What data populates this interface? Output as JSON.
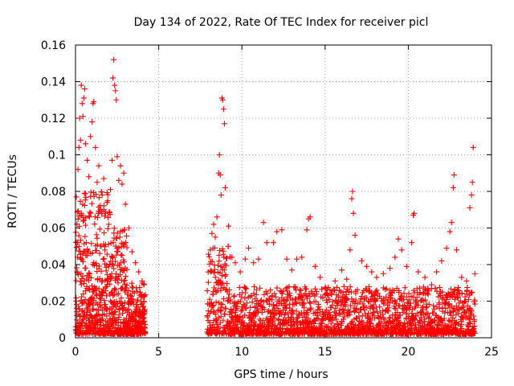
{
  "chart_data": {
    "type": "scatter",
    "title": "Day 134 of 2022, Rate Of TEC Index for receiver picl",
    "xlabel": "GPS time / hours",
    "ylabel": "ROTI / TECUs",
    "xlim": [
      0,
      25
    ],
    "ylim": [
      0,
      0.16
    ],
    "xticks": [
      0,
      5,
      10,
      15,
      20,
      25
    ],
    "xtick_labels": [
      "0",
      "5",
      "10",
      "15",
      "20",
      "25"
    ],
    "yticks": [
      0,
      0.02,
      0.04,
      0.06,
      0.08,
      0.1,
      0.12,
      0.14,
      0.16
    ],
    "ytick_labels": [
      "0",
      "0.02",
      "0.04",
      "0.06",
      "0.08",
      "0.1",
      "0.12",
      "0.14",
      "0.16"
    ],
    "grid": true,
    "legend": "none",
    "marker": "plus",
    "marker_color": "#ff0000",
    "data_gap_hours": [
      4.2,
      7.9
    ],
    "series": [
      {
        "points": [
          [
            0.05,
            0.077
          ],
          [
            0.1,
            0.052
          ],
          [
            0.15,
            0.092
          ],
          [
            0.2,
            0.104
          ],
          [
            0.25,
            0.12
          ],
          [
            0.3,
            0.108
          ],
          [
            0.35,
            0.138
          ],
          [
            0.4,
            0.128
          ],
          [
            0.45,
            0.121
          ],
          [
            0.5,
            0.131
          ],
          [
            0.55,
            0.136
          ],
          [
            0.6,
            0.106
          ],
          [
            0.7,
            0.097
          ],
          [
            0.8,
            0.088
          ],
          [
            0.9,
            0.11
          ],
          [
            1.0,
            0.118
          ],
          [
            1.05,
            0.128
          ],
          [
            1.1,
            0.129
          ],
          [
            1.2,
            0.104
          ],
          [
            1.3,
            0.085
          ],
          [
            1.4,
            0.094
          ],
          [
            1.5,
            0.07
          ],
          [
            1.6,
            0.078
          ],
          [
            1.7,
            0.087
          ],
          [
            1.8,
            0.068
          ],
          [
            1.9,
            0.074
          ],
          [
            2.0,
            0.062
          ],
          [
            2.1,
            0.081
          ],
          [
            2.2,
            0.097
          ],
          [
            2.25,
            0.142
          ],
          [
            2.3,
            0.152
          ],
          [
            2.35,
            0.138
          ],
          [
            2.4,
            0.135
          ],
          [
            2.45,
            0.13
          ],
          [
            2.5,
            0.099
          ],
          [
            2.6,
            0.086
          ],
          [
            2.7,
            0.094
          ],
          [
            2.8,
            0.084
          ],
          [
            2.9,
            0.09
          ],
          [
            3.0,
            0.073
          ],
          [
            3.2,
            0.06
          ],
          [
            3.4,
            0.047
          ],
          [
            3.6,
            0.041
          ],
          [
            3.8,
            0.036
          ],
          [
            4.0,
            0.031
          ],
          [
            4.1,
            0.029
          ],
          [
            8.1,
            0.048
          ],
          [
            8.2,
            0.057
          ],
          [
            8.3,
            0.062
          ],
          [
            8.4,
            0.055
          ],
          [
            8.5,
            0.066
          ],
          [
            8.6,
            0.09
          ],
          [
            8.65,
            0.1
          ],
          [
            8.7,
            0.089
          ],
          [
            8.75,
            0.078
          ],
          [
            8.8,
            0.131
          ],
          [
            8.85,
            0.13
          ],
          [
            8.9,
            0.125
          ],
          [
            8.95,
            0.117
          ],
          [
            9.0,
            0.082
          ],
          [
            9.2,
            0.061
          ],
          [
            9.4,
            0.044
          ],
          [
            9.6,
            0.041
          ],
          [
            9.9,
            0.036
          ],
          [
            10.2,
            0.043
          ],
          [
            10.4,
            0.049
          ],
          [
            10.7,
            0.041
          ],
          [
            11.0,
            0.043
          ],
          [
            11.3,
            0.063
          ],
          [
            11.5,
            0.052
          ],
          [
            11.9,
            0.052
          ],
          [
            12.1,
            0.058
          ],
          [
            12.4,
            0.059
          ],
          [
            12.7,
            0.043
          ],
          [
            13.0,
            0.037
          ],
          [
            13.3,
            0.043
          ],
          [
            13.6,
            0.044
          ],
          [
            13.9,
            0.059
          ],
          [
            14.0,
            0.065
          ],
          [
            14.1,
            0.066
          ],
          [
            14.4,
            0.039
          ],
          [
            14.7,
            0.033
          ],
          [
            15.0,
            0.027
          ],
          [
            15.3,
            0.026
          ],
          [
            15.6,
            0.031
          ],
          [
            16.0,
            0.037
          ],
          [
            16.3,
            0.032
          ],
          [
            16.5,
            0.048
          ],
          [
            16.6,
            0.076
          ],
          [
            16.65,
            0.08
          ],
          [
            16.7,
            0.068
          ],
          [
            16.8,
            0.056
          ],
          [
            17.2,
            0.042
          ],
          [
            17.5,
            0.039
          ],
          [
            17.8,
            0.036
          ],
          [
            18.1,
            0.033
          ],
          [
            18.5,
            0.035
          ],
          [
            18.9,
            0.038
          ],
          [
            19.2,
            0.044
          ],
          [
            19.4,
            0.054
          ],
          [
            19.6,
            0.048
          ],
          [
            19.9,
            0.039
          ],
          [
            20.2,
            0.052
          ],
          [
            20.3,
            0.067
          ],
          [
            20.35,
            0.068
          ],
          [
            20.6,
            0.036
          ],
          [
            21.0,
            0.033
          ],
          [
            21.4,
            0.029
          ],
          [
            21.7,
            0.036
          ],
          [
            22.0,
            0.042
          ],
          [
            22.3,
            0.049
          ],
          [
            22.5,
            0.058
          ],
          [
            22.6,
            0.063
          ],
          [
            22.7,
            0.082
          ],
          [
            22.75,
            0.089
          ],
          [
            22.9,
            0.048
          ],
          [
            23.2,
            0.033
          ],
          [
            23.5,
            0.031
          ],
          [
            23.7,
            0.071
          ],
          [
            23.8,
            0.078
          ],
          [
            23.85,
            0.085
          ],
          [
            23.9,
            0.104
          ],
          [
            24.0,
            0.035
          ]
        ]
      }
    ]
  }
}
